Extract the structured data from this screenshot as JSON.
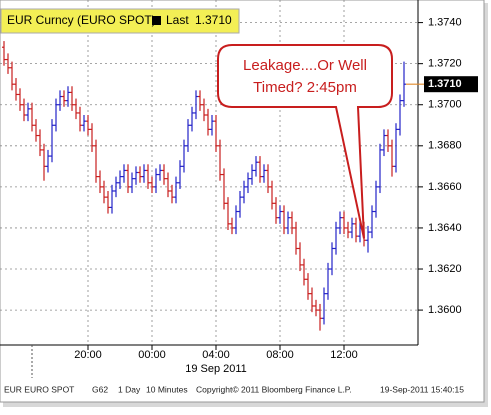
{
  "chart_data": {
    "type": "ohlc",
    "legend": {
      "ticker": "EUR Curncy (EURO SPOT)",
      "last_text": "Last",
      "last": {
        "value": 1.371,
        "label": "1.3710"
      }
    },
    "last_marker": {
      "value": 1.371,
      "label": "1.3710"
    },
    "annotation": {
      "lines": [
        "Leakage....Or Well",
        "Timed? 2:45pm"
      ],
      "target_index": 90
    },
    "date_label": "19 Sep 2011",
    "footer": {
      "security": "EUR  EURO SPOT",
      "page": "G62",
      "range": "1 Day",
      "interval": "10 Minutes",
      "copyright": "Copyright© 2011 Bloomberg Finance L.P.",
      "timestamp": "19-Sep-2011 15:40:15"
    },
    "categories": [
      null,
      null,
      null,
      null,
      null,
      null,
      null,
      null,
      null,
      null,
      null,
      null,
      null,
      null,
      null,
      null,
      null,
      null,
      null,
      null,
      null,
      "20:00",
      null,
      null,
      null,
      null,
      null,
      null,
      null,
      null,
      null,
      null,
      null,
      null,
      null,
      null,
      null,
      "00:00",
      null,
      null,
      null,
      null,
      null,
      null,
      null,
      null,
      null,
      null,
      null,
      null,
      null,
      null,
      null,
      "04:00",
      null,
      null,
      null,
      null,
      null,
      null,
      null,
      null,
      null,
      null,
      null,
      null,
      null,
      null,
      null,
      "08:00",
      null,
      null,
      null,
      null,
      null,
      null,
      null,
      null,
      null,
      null,
      null,
      null,
      null,
      null,
      null,
      "12:00",
      null,
      null,
      null,
      null,
      null,
      null,
      null,
      null,
      null,
      null,
      null,
      null,
      null,
      null,
      null
    ],
    "open": [
      1.3728,
      1.3722,
      1.3718,
      1.371,
      1.3705,
      1.37,
      1.3695,
      1.3698,
      1.369,
      1.3685,
      1.3678,
      1.367,
      1.3675,
      1.369,
      1.37,
      1.3704,
      1.3702,
      1.3706,
      1.37,
      1.3696,
      1.369,
      1.3692,
      1.3688,
      1.368,
      1.3665,
      1.366,
      1.3655,
      1.365,
      1.3658,
      1.3662,
      1.3665,
      1.3668,
      1.366,
      1.3664,
      1.3667,
      1.3665,
      1.3668,
      1.3662,
      1.366,
      1.3666,
      1.3668,
      1.3664,
      1.3658,
      1.3655,
      1.3662,
      1.367,
      1.368,
      1.369,
      1.3696,
      1.3704,
      1.37,
      1.3695,
      1.3688,
      1.3692,
      1.368,
      1.3666,
      1.3652,
      1.3642,
      1.364,
      1.3648,
      1.3655,
      1.366,
      1.3664,
      1.3668,
      1.3672,
      1.3665,
      1.3668,
      1.366,
      1.3652,
      1.3645,
      1.3648,
      1.364,
      1.3645,
      1.364,
      1.363,
      1.3622,
      1.3615,
      1.3608,
      1.3602,
      1.36,
      1.3596,
      1.3608,
      1.362,
      1.363,
      1.364,
      1.3645,
      1.364,
      1.3638,
      1.3642,
      1.3636,
      1.364,
      1.3634,
      1.3638,
      1.3648,
      1.366,
      1.3678,
      1.3685,
      1.368,
      1.367,
      1.3688,
      1.3702
    ],
    "high": [
      1.3731,
      1.3725,
      1.3721,
      1.3713,
      1.3708,
      1.3703,
      1.3701,
      1.3701,
      1.3693,
      1.3688,
      1.3681,
      1.3678,
      1.3693,
      1.3703,
      1.3707,
      1.3707,
      1.3709,
      1.3709,
      1.3703,
      1.3699,
      1.3695,
      1.3695,
      1.3691,
      1.3683,
      1.3668,
      1.3663,
      1.3658,
      1.3661,
      1.3665,
      1.3668,
      1.3671,
      1.3671,
      1.3667,
      1.367,
      1.367,
      1.3671,
      1.3671,
      1.3665,
      1.3669,
      1.3671,
      1.3671,
      1.3667,
      1.3661,
      1.3665,
      1.3673,
      1.3683,
      1.3693,
      1.3699,
      1.3707,
      1.3707,
      1.3703,
      1.3698,
      1.3695,
      1.3695,
      1.3683,
      1.3669,
      1.3655,
      1.3645,
      1.3651,
      1.3658,
      1.3663,
      1.3667,
      1.3671,
      1.3675,
      1.3675,
      1.3671,
      1.3671,
      1.3663,
      1.3655,
      1.3651,
      1.3651,
      1.3648,
      1.3648,
      1.3643,
      1.3633,
      1.3625,
      1.3618,
      1.3611,
      1.3605,
      1.3603,
      1.3611,
      1.3623,
      1.3633,
      1.3643,
      1.3648,
      1.3648,
      1.3643,
      1.3645,
      1.3645,
      1.3643,
      1.3643,
      1.3641,
      1.3651,
      1.3663,
      1.3681,
      1.3688,
      1.3688,
      1.3683,
      1.3691,
      1.3705,
      1.3721
    ],
    "low": [
      1.3719,
      1.3715,
      1.3707,
      1.3702,
      1.3697,
      1.3692,
      1.3692,
      1.3687,
      1.3682,
      1.3675,
      1.3663,
      1.3667,
      1.3672,
      1.3687,
      1.3697,
      1.3699,
      1.3699,
      1.3697,
      1.3693,
      1.3687,
      1.3687,
      1.3685,
      1.3677,
      1.3662,
      1.3657,
      1.3652,
      1.3647,
      1.3647,
      1.3655,
      1.3659,
      1.3662,
      1.3657,
      1.3657,
      1.3661,
      1.3662,
      1.3662,
      1.3659,
      1.3657,
      1.3657,
      1.3663,
      1.3661,
      1.3655,
      1.3652,
      1.3652,
      1.3659,
      1.3667,
      1.3677,
      1.3687,
      1.3693,
      1.3697,
      1.3692,
      1.3685,
      1.3685,
      1.3677,
      1.3663,
      1.3649,
      1.3639,
      1.3637,
      1.3637,
      1.3645,
      1.3652,
      1.3657,
      1.3661,
      1.3665,
      1.3662,
      1.3662,
      1.3657,
      1.3649,
      1.3642,
      1.3642,
      1.3637,
      1.3637,
      1.3637,
      1.3627,
      1.3619,
      1.3612,
      1.3605,
      1.3599,
      1.3597,
      1.359,
      1.3593,
      1.3605,
      1.3617,
      1.3627,
      1.3637,
      1.3637,
      1.3635,
      1.3635,
      1.3633,
      1.3633,
      1.3631,
      1.3628,
      1.3635,
      1.3645,
      1.3657,
      1.3675,
      1.3677,
      1.3665,
      1.3667,
      1.3685,
      1.3699
    ],
    "close": [
      1.3722,
      1.3718,
      1.371,
      1.3705,
      1.37,
      1.3695,
      1.3698,
      1.369,
      1.3685,
      1.3678,
      1.367,
      1.3675,
      1.369,
      1.37,
      1.3704,
      1.3702,
      1.3706,
      1.37,
      1.3696,
      1.369,
      1.3692,
      1.3688,
      1.368,
      1.3665,
      1.366,
      1.3655,
      1.365,
      1.3658,
      1.3662,
      1.3665,
      1.3668,
      1.366,
      1.3664,
      1.3667,
      1.3665,
      1.3668,
      1.3662,
      1.366,
      1.3666,
      1.3668,
      1.3664,
      1.3658,
      1.3655,
      1.3662,
      1.367,
      1.368,
      1.369,
      1.3696,
      1.3704,
      1.37,
      1.3695,
      1.3688,
      1.3692,
      1.368,
      1.3666,
      1.3652,
      1.3642,
      1.364,
      1.3648,
      1.3655,
      1.366,
      1.3664,
      1.3668,
      1.3672,
      1.3665,
      1.3668,
      1.366,
      1.3652,
      1.3645,
      1.3648,
      1.364,
      1.3645,
      1.364,
      1.363,
      1.3622,
      1.3615,
      1.3608,
      1.3602,
      1.36,
      1.3596,
      1.3608,
      1.362,
      1.363,
      1.364,
      1.3645,
      1.364,
      1.3638,
      1.3642,
      1.3636,
      1.364,
      1.3634,
      1.3638,
      1.3648,
      1.366,
      1.3678,
      1.3685,
      1.368,
      1.367,
      1.3688,
      1.3702,
      1.371
    ],
    "up_color": "#2323c8",
    "down_color": "#c81e1e",
    "ylim": [
      1.3583,
      1.3751
    ],
    "yticks": [
      {
        "value": 1.36,
        "label": "1.3600"
      },
      {
        "value": 1.362,
        "label": "1.3620"
      },
      {
        "value": 1.364,
        "label": "1.3640"
      },
      {
        "value": 1.366,
        "label": "1.3660"
      },
      {
        "value": 1.368,
        "label": "1.3680"
      },
      {
        "value": 1.37,
        "label": "1.3700"
      },
      {
        "value": 1.372,
        "label": "1.3720"
      },
      {
        "value": 1.374,
        "label": "1.3740"
      }
    ],
    "grid": true
  }
}
